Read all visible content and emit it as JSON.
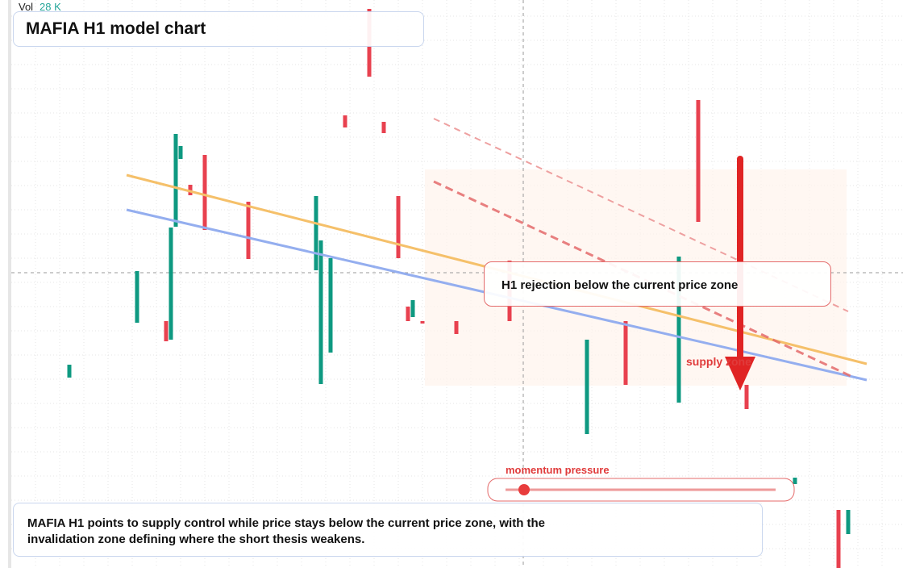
{
  "header": {
    "volume_label": "Vol",
    "volume_value": "28 K",
    "title": "MAFIA H1 model chart"
  },
  "annotations": {
    "callout": "H1 rejection below the current price zone",
    "zone_label": "supply zone",
    "gauge_label": "momentum pressure"
  },
  "summary": "MAFIA H1 points to supply control while price stays below the current price zone, with the invalidation zone defining where the short thesis weakens.",
  "candles": [
    {
      "t": 11,
      "o": 236,
      "c": 252
    },
    {
      "t": 25,
      "o": 304,
      "c": 368
    },
    {
      "t": 31,
      "o": 306,
      "c": 281
    },
    {
      "t": 32,
      "o": 283,
      "c": 422
    },
    {
      "t": 33,
      "o": 423,
      "c": 538
    },
    {
      "t": 34,
      "o": 507,
      "c": 523
    },
    {
      "t": 36,
      "o": 475,
      "c": 462
    },
    {
      "t": 39,
      "o": 512,
      "c": 419
    },
    {
      "t": 48,
      "o": 454,
      "c": 383
    },
    {
      "t": 62,
      "o": 369,
      "c": 461
    },
    {
      "t": 63,
      "o": 228,
      "c": 406
    },
    {
      "t": 65,
      "o": 267,
      "c": 384
    },
    {
      "t": 68,
      "o": 561,
      "c": 546
    },
    {
      "t": 73,
      "o": 693,
      "c": 609
    },
    {
      "t": 76,
      "o": 553,
      "c": 539
    },
    {
      "t": 79,
      "o": 461,
      "c": 384
    },
    {
      "t": 81,
      "o": 324,
      "c": 306
    },
    {
      "t": 82,
      "o": 311,
      "c": 332
    },
    {
      "t": 84,
      "o": 306,
      "c": 303
    },
    {
      "t": 91,
      "o": 306,
      "c": 290
    },
    {
      "t": 102,
      "o": 381,
      "c": 306
    },
    {
      "t": 118,
      "o": 166,
      "c": 283
    },
    {
      "t": 126,
      "o": 306,
      "c": 227
    },
    {
      "t": 137,
      "o": 205,
      "c": 386
    },
    {
      "t": 141,
      "o": 580,
      "c": 429
    },
    {
      "t": 151,
      "o": 227,
      "c": 197
    },
    {
      "t": 161,
      "o": 104,
      "c": 112
    },
    {
      "t": 170,
      "o": 72,
      "c": 0
    },
    {
      "t": 172,
      "o": 42,
      "c": 72
    }
  ]
}
